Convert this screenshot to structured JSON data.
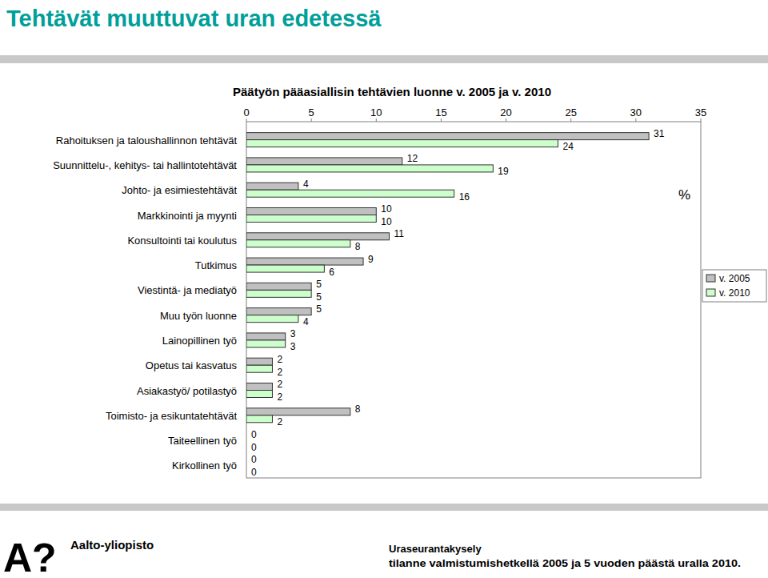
{
  "header": {
    "title": "Tehtävät muuttuvat uran edetessä"
  },
  "chart_data": {
    "type": "bar",
    "orientation": "horizontal",
    "title": "Päätyön pääasiallisin tehtävien luonne v. 2005 ja v. 2010",
    "x_label": "%",
    "categories": [
      "Rahoituksen ja taloushallinnon tehtävät",
      "Suunnittelu-, kehitys- tai hallintotehtävät",
      "Johto- ja esimiestehtävät",
      "Markkinointi ja myynti",
      "Konsultointi tai koulutus",
      "Tutkimus",
      "Viestintä- ja mediatyö",
      "Muu työn luonne",
      "Lainopillinen työ",
      "Opetus tai kasvatus",
      "Asiakastyö/ potilastyö",
      "Toimisto- ja esikuntatehtävät",
      "Taiteellinen työ",
      "Kirkollinen työ"
    ],
    "series": [
      {
        "name": "v. 2005",
        "color": "#c0c0c0",
        "values": [
          31,
          12,
          4,
          10,
          11,
          9,
          5,
          5,
          3,
          2,
          2,
          8,
          0,
          0
        ]
      },
      {
        "name": "v. 2010",
        "color": "#ccffcc",
        "values": [
          24,
          19,
          16,
          10,
          8,
          6,
          5,
          4,
          3,
          2,
          2,
          2,
          0,
          0
        ]
      }
    ],
    "xlim": [
      0,
      35
    ],
    "xticks": [
      0,
      5,
      10,
      15,
      20,
      25,
      30,
      35
    ],
    "grid": false,
    "legend": "right",
    "data_labels": true
  },
  "footer": {
    "logo": "A?",
    "organization": "Aalto-yliopisto",
    "survey": "Uraseurantakysely",
    "note": "tilanne valmistumishetkellä  2005 ja 5 vuoden päästä  uralla 2010."
  }
}
